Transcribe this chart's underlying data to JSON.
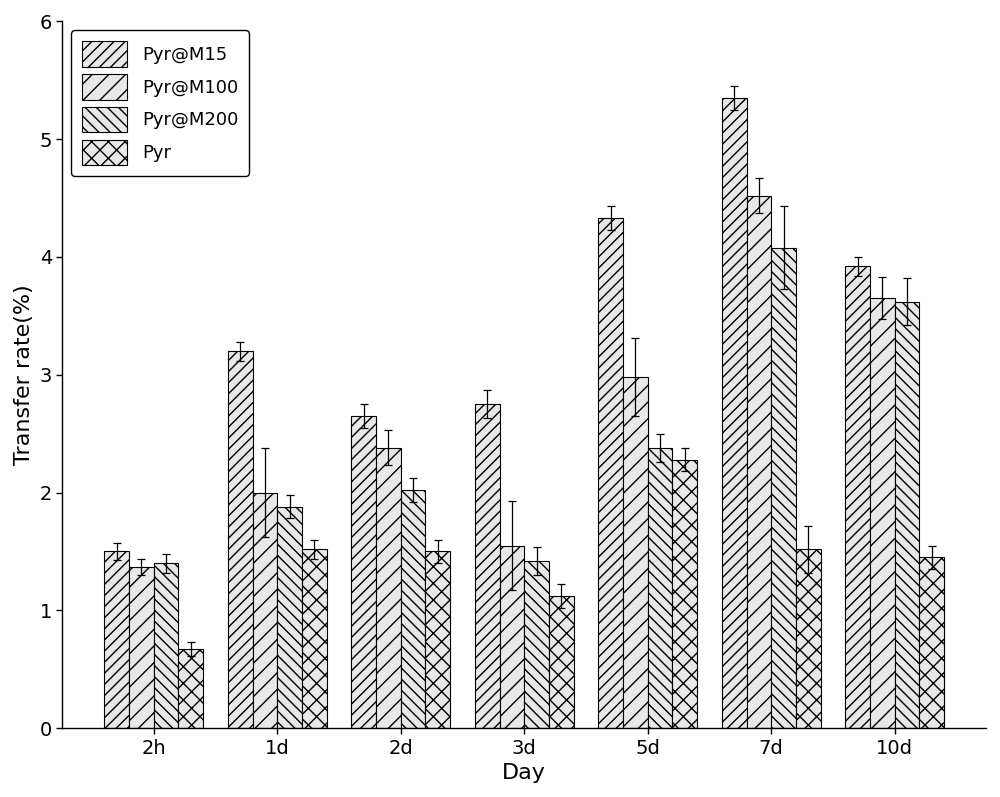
{
  "categories": [
    "2h",
    "1d",
    "2d",
    "3d",
    "5d",
    "7d",
    "10d"
  ],
  "series": {
    "Pyr@M15": [
      1.5,
      3.2,
      2.65,
      2.75,
      4.33,
      5.35,
      3.92
    ],
    "Pyr@M100": [
      1.37,
      2.0,
      2.38,
      1.55,
      2.98,
      4.52,
      3.65
    ],
    "Pyr@M200": [
      1.4,
      1.88,
      2.02,
      1.42,
      2.38,
      4.08,
      3.62
    ],
    "Pyr": [
      0.67,
      1.52,
      1.5,
      1.12,
      2.28,
      1.52,
      1.45
    ]
  },
  "errors": {
    "Pyr@M15": [
      0.07,
      0.08,
      0.1,
      0.12,
      0.1,
      0.1,
      0.08
    ],
    "Pyr@M100": [
      0.07,
      0.38,
      0.15,
      0.38,
      0.33,
      0.15,
      0.18
    ],
    "Pyr@M200": [
      0.08,
      0.1,
      0.1,
      0.12,
      0.12,
      0.35,
      0.2
    ],
    "Pyr": [
      0.06,
      0.08,
      0.1,
      0.1,
      0.1,
      0.2,
      0.1
    ]
  },
  "hatch_patterns": [
    "///",
    "//",
    "\\\\\\",
    "xx"
  ],
  "ylim": [
    0,
    6
  ],
  "yticks": [
    0,
    1,
    2,
    3,
    4,
    5,
    6
  ],
  "ylabel": "Transfer rate(%)",
  "xlabel": "Day",
  "legend_labels": [
    "Pyr@M15",
    "Pyr@M100",
    "Pyr@M200",
    "Pyr"
  ],
  "bar_width": 0.2,
  "face_color": "#e8e8e8",
  "edge_color": "black",
  "label_fontsize": 16,
  "tick_fontsize": 14,
  "legend_fontsize": 13
}
